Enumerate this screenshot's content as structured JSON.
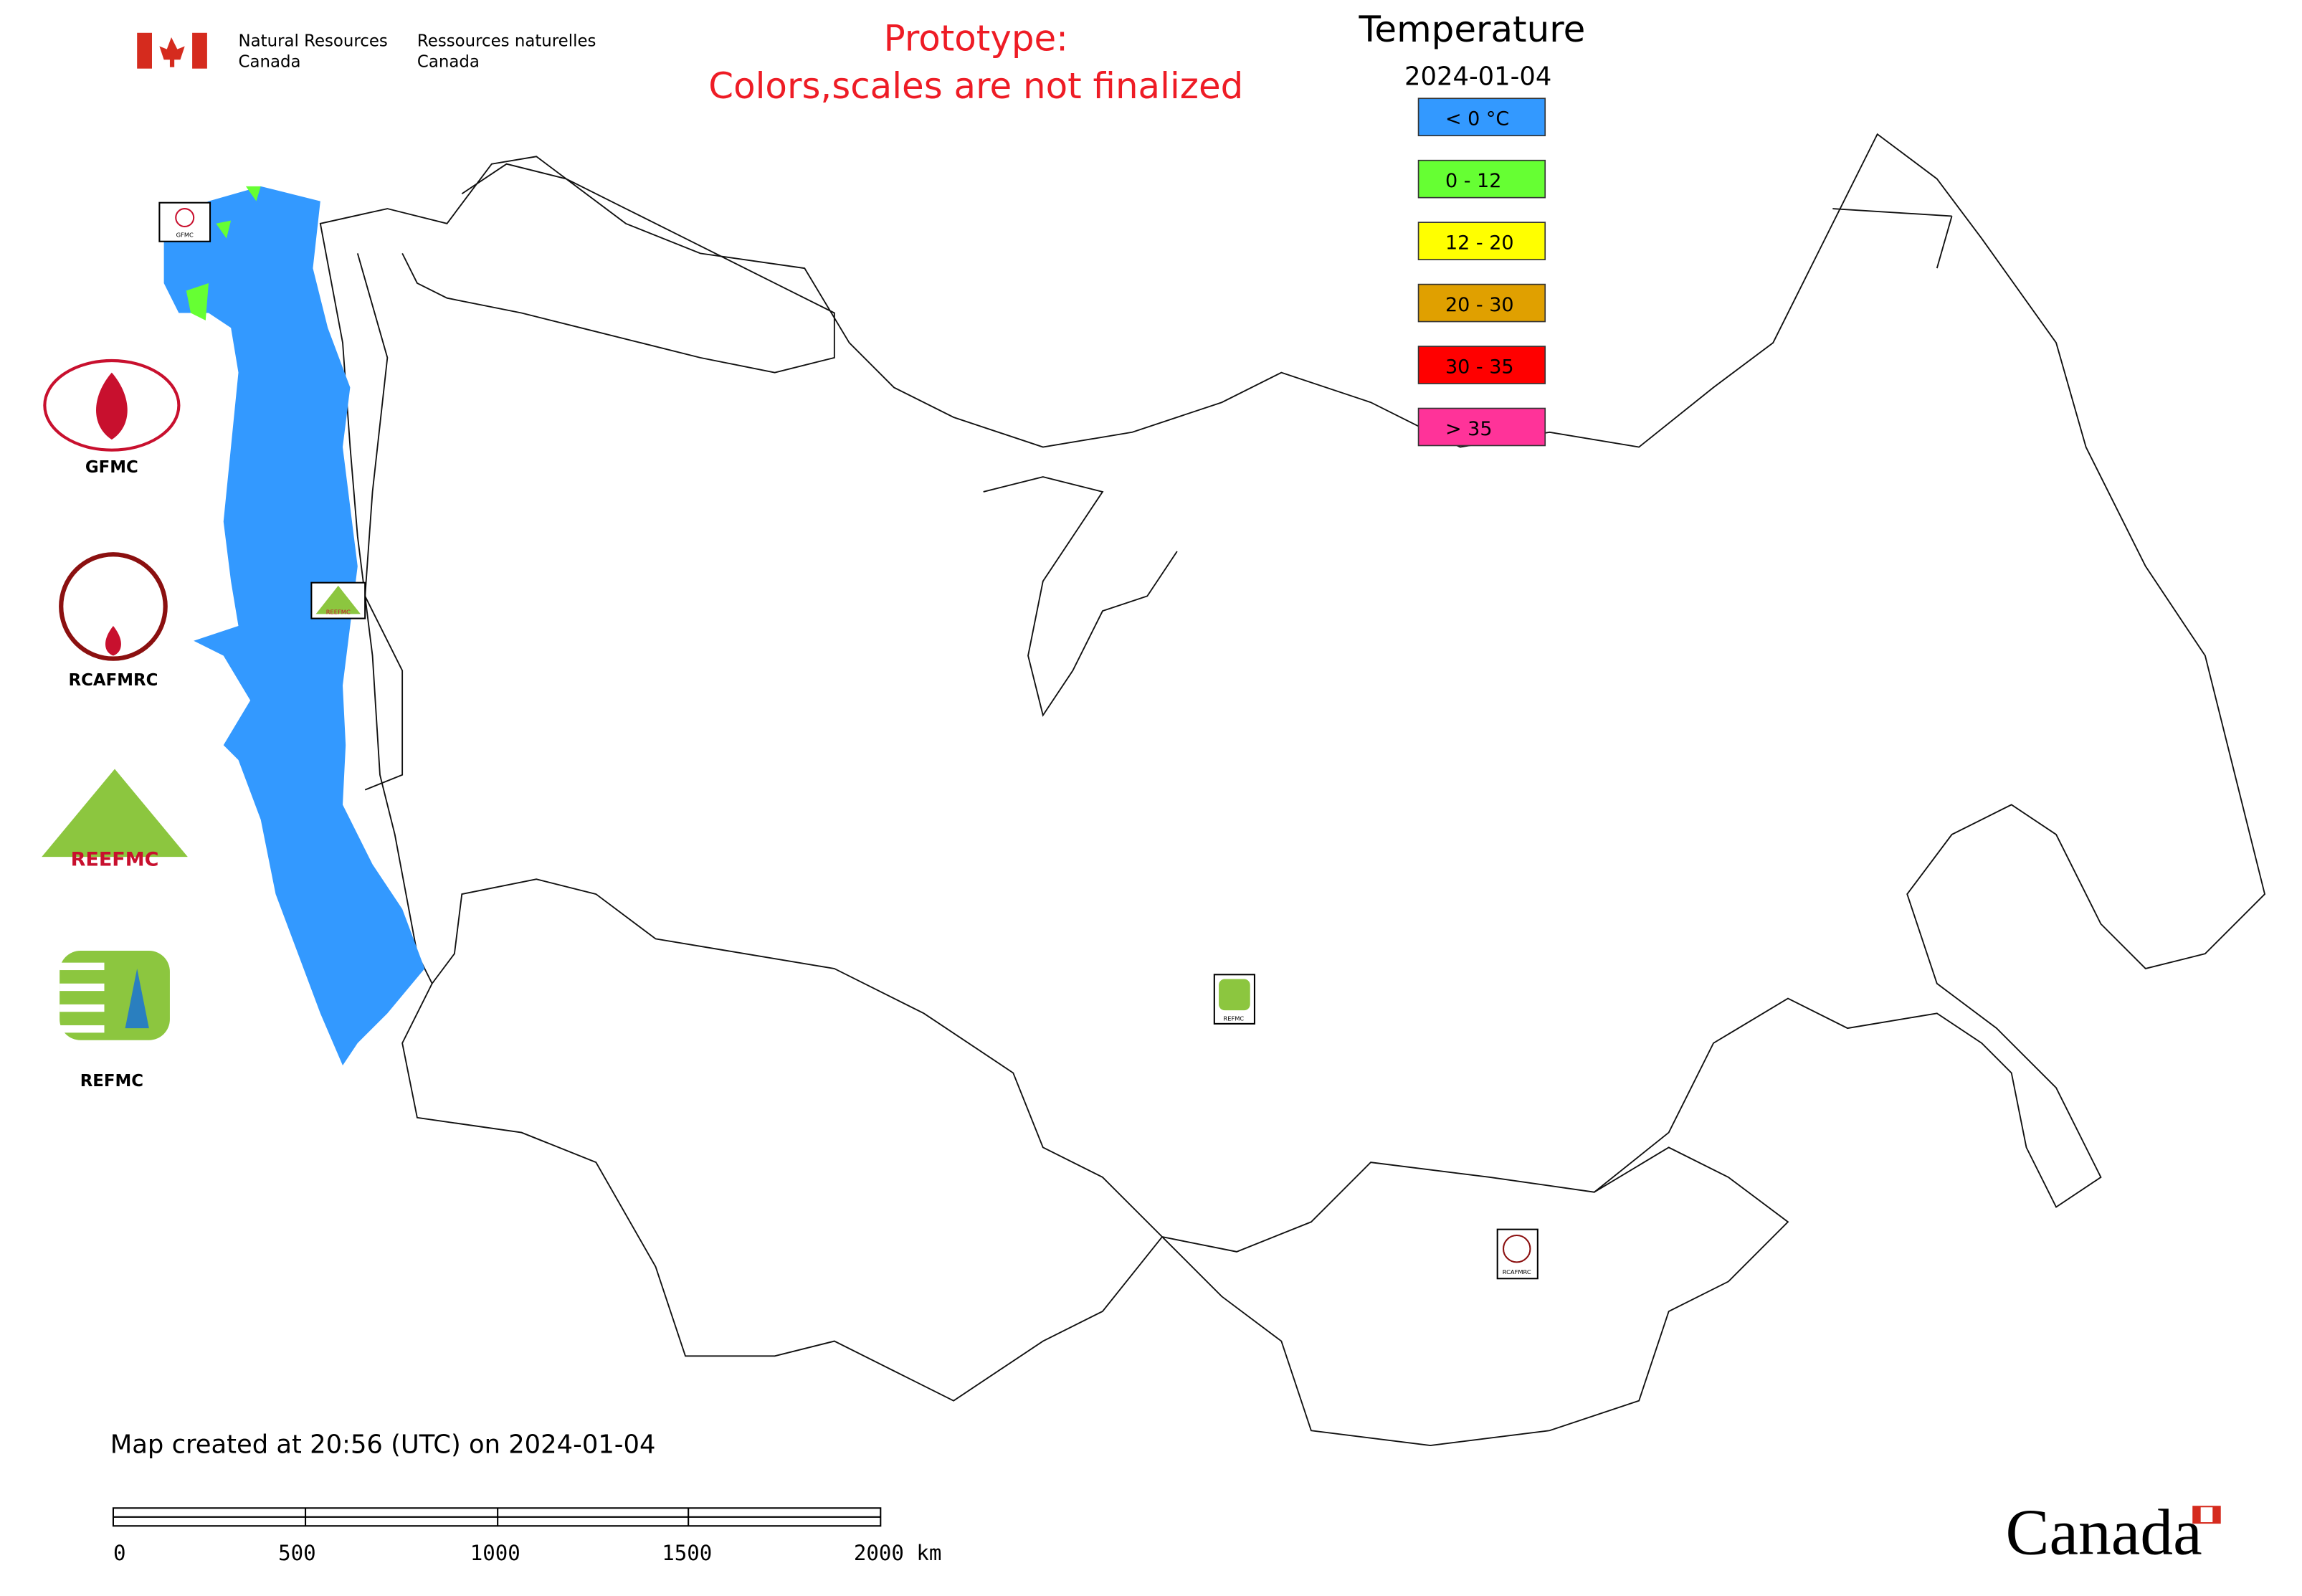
{
  "header": {
    "agency_en": [
      "Natural Resources",
      "Canada"
    ],
    "agency_fr": [
      "Ressources naturelles",
      "Canada"
    ],
    "notice": [
      "Prototype:",
      "Colors,scales are not finalized"
    ]
  },
  "legend": {
    "title": "Temperature",
    "date": "2024-01-04",
    "items": [
      {
        "label": "< 0 °C",
        "color": "#3399ff"
      },
      {
        "label": "0 - 12",
        "color": "#66ff33"
      },
      {
        "label": "12 - 20",
        "color": "#ffff00"
      },
      {
        "label": "20 - 30",
        "color": "#e0a000"
      },
      {
        "label": "30 - 35",
        "color": "#ff0000"
      },
      {
        "label": "> 35",
        "color": "#ff3399"
      }
    ]
  },
  "logos": [
    "GFMC",
    "RCAFMRC",
    "REEFMC",
    "REFMC"
  ],
  "map_markers": [
    "GFMC",
    "REEFMC",
    "REFMC",
    "RCAFMRC"
  ],
  "footer": {
    "created": "Map created at 20:56 (UTC) on 2024-01-04",
    "scale_labels": [
      "0",
      "500",
      "1000",
      "1500",
      "2000 km"
    ],
    "wordmark": "Canada"
  }
}
